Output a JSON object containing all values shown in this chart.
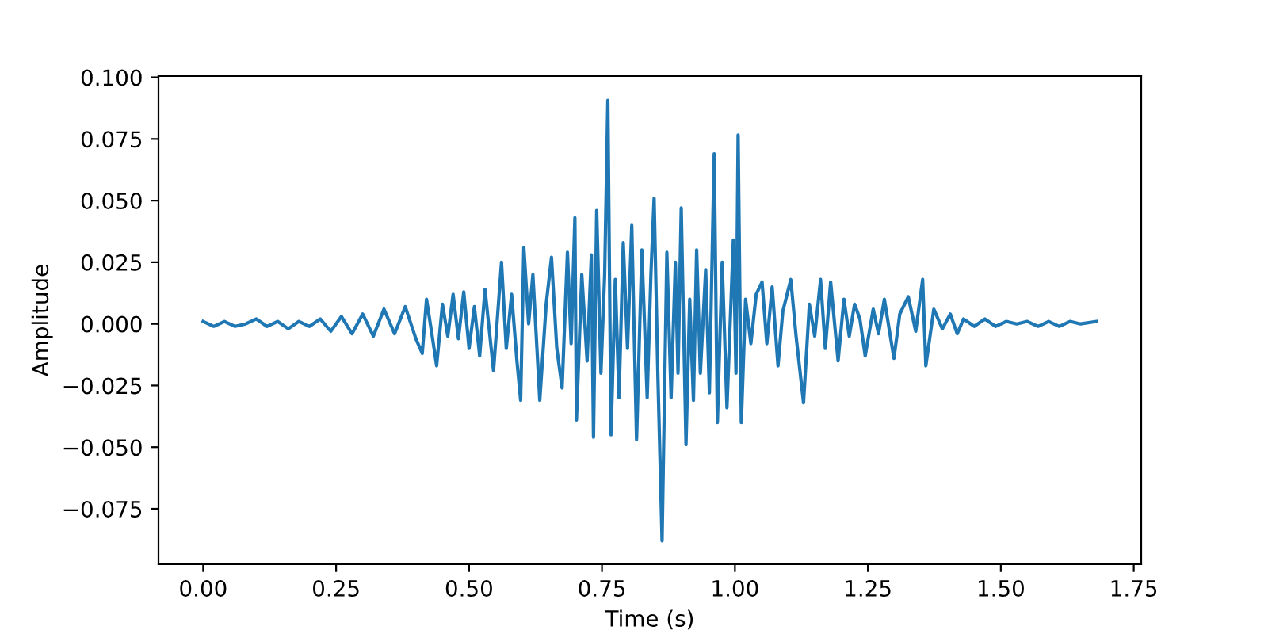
{
  "chart_data": {
    "type": "line",
    "xlabel": "Time (s)",
    "ylabel": "Amplitude",
    "xlim": [
      -0.084,
      1.764
    ],
    "ylim": [
      -0.0975,
      0.1005
    ],
    "xticks": [
      {
        "value": 0,
        "label": "0.00"
      },
      {
        "value": 0.25,
        "label": "0.25"
      },
      {
        "value": 0.5,
        "label": "0.50"
      },
      {
        "value": 0.75,
        "label": "0.75"
      },
      {
        "value": 1,
        "label": "1.00"
      },
      {
        "value": 1.25,
        "label": "1.25"
      },
      {
        "value": 1.5,
        "label": "1.50"
      },
      {
        "value": 1.75,
        "label": "1.75"
      }
    ],
    "yticks": [
      {
        "value": -0.075,
        "label": "−0.075"
      },
      {
        "value": -0.05,
        "label": "−0.050"
      },
      {
        "value": -0.025,
        "label": "−0.025"
      },
      {
        "value": 0,
        "label": "0.000"
      },
      {
        "value": 0.025,
        "label": "0.025"
      },
      {
        "value": 0.05,
        "label": "0.050"
      },
      {
        "value": 0.075,
        "label": "0.075"
      },
      {
        "value": 0.1,
        "label": "0.100"
      }
    ],
    "grid": false,
    "marker": "none",
    "line_style": "solid",
    "series": [
      {
        "color": "#1f77b4",
        "x": [
          0.0,
          0.02,
          0.04,
          0.06,
          0.08,
          0.1,
          0.12,
          0.14,
          0.16,
          0.18,
          0.2,
          0.22,
          0.24,
          0.26,
          0.28,
          0.3,
          0.32,
          0.34,
          0.36,
          0.38,
          0.4,
          0.412,
          0.42,
          0.43,
          0.439,
          0.45,
          0.46,
          0.47,
          0.48,
          0.49,
          0.5,
          0.51,
          0.52,
          0.53,
          0.546,
          0.561,
          0.57,
          0.58,
          0.59,
          0.597,
          0.603,
          0.612,
          0.62,
          0.633,
          0.645,
          0.655,
          0.665,
          0.675,
          0.685,
          0.692,
          0.699,
          0.702,
          0.712,
          0.722,
          0.73,
          0.734,
          0.74,
          0.748,
          0.755,
          0.761,
          0.767,
          0.775,
          0.782,
          0.79,
          0.798,
          0.806,
          0.815,
          0.825,
          0.835,
          0.842,
          0.848,
          0.855,
          0.863,
          0.872,
          0.88,
          0.888,
          0.893,
          0.899,
          0.908,
          0.915,
          0.922,
          0.928,
          0.935,
          0.945,
          0.952,
          0.961,
          0.967,
          0.976,
          0.985,
          0.997,
          1.002,
          1.006,
          1.012,
          1.02,
          1.03,
          1.04,
          1.051,
          1.06,
          1.07,
          1.081,
          1.09,
          1.105,
          1.115,
          1.129,
          1.14,
          1.15,
          1.161,
          1.17,
          1.18,
          1.194,
          1.205,
          1.215,
          1.225,
          1.235,
          1.245,
          1.26,
          1.27,
          1.281,
          1.299,
          1.31,
          1.326,
          1.34,
          1.353,
          1.359,
          1.374,
          1.39,
          1.405,
          1.418,
          1.43,
          1.45,
          1.47,
          1.49,
          1.51,
          1.53,
          1.55,
          1.57,
          1.59,
          1.61,
          1.63,
          1.65,
          1.68
        ],
        "values": [
          0.001,
          -0.001,
          0.001,
          -0.001,
          0.0,
          0.002,
          -0.001,
          0.001,
          -0.002,
          0.001,
          -0.001,
          0.002,
          -0.003,
          0.003,
          -0.004,
          0.004,
          -0.005,
          0.006,
          -0.004,
          0.007,
          -0.006,
          -0.012,
          0.01,
          -0.004,
          -0.017,
          0.008,
          -0.005,
          0.012,
          -0.006,
          0.013,
          -0.01,
          0.007,
          -0.013,
          0.014,
          -0.019,
          0.025,
          -0.01,
          0.012,
          -0.015,
          -0.031,
          0.031,
          0.0,
          0.02,
          -0.031,
          0.008,
          0.027,
          -0.01,
          -0.026,
          0.029,
          -0.008,
          0.043,
          -0.039,
          0.02,
          -0.015,
          0.028,
          -0.046,
          0.046,
          -0.02,
          0.02,
          0.0907,
          -0.045,
          0.018,
          -0.03,
          0.033,
          -0.01,
          0.04,
          -0.047,
          0.03,
          -0.03,
          0.02,
          0.051,
          -0.02,
          -0.088,
          0.029,
          -0.03,
          0.025,
          -0.02,
          0.047,
          -0.049,
          0.01,
          -0.031,
          0.03,
          -0.02,
          0.022,
          -0.028,
          0.069,
          -0.04,
          0.025,
          -0.034,
          0.034,
          -0.02,
          0.0766,
          -0.04,
          0.01,
          -0.008,
          0.012,
          0.017,
          -0.008,
          0.015,
          -0.017,
          0.005,
          0.018,
          -0.005,
          -0.032,
          0.008,
          -0.005,
          0.018,
          -0.01,
          0.017,
          -0.015,
          0.01,
          -0.005,
          0.008,
          0.002,
          -0.013,
          0.006,
          -0.004,
          0.01,
          -0.014,
          0.004,
          0.011,
          -0.003,
          0.018,
          -0.017,
          0.006,
          -0.002,
          0.004,
          -0.004,
          0.002,
          -0.001,
          0.002,
          -0.001,
          0.001,
          0.0,
          0.001,
          -0.001,
          0.001,
          -0.001,
          0.001,
          0.0,
          0.001
        ]
      }
    ]
  }
}
